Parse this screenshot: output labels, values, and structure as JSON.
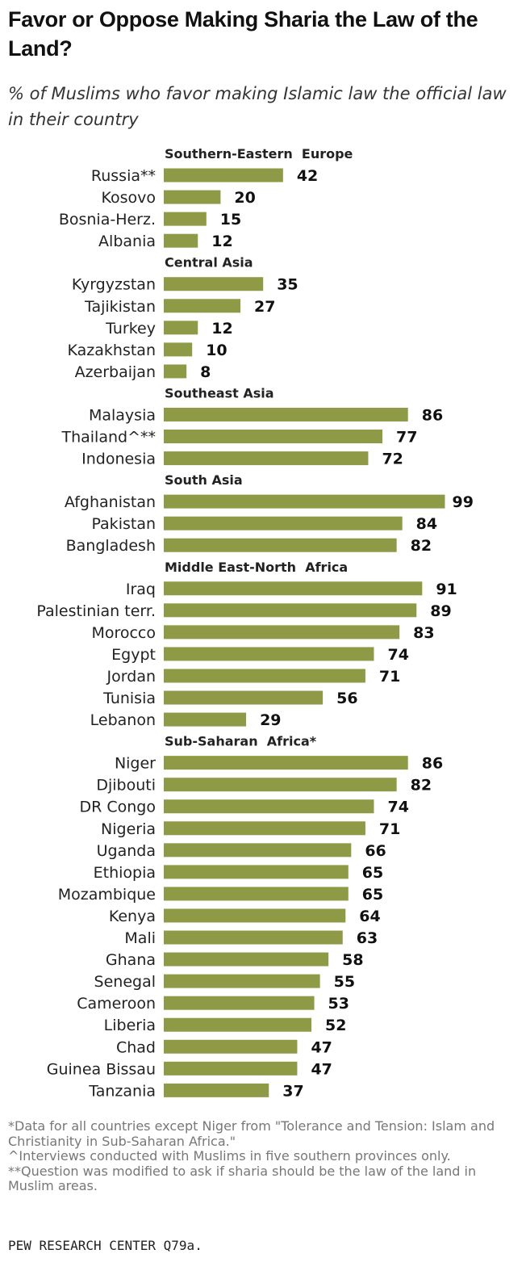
{
  "chart_data": {
    "type": "bar",
    "orientation": "horizontal",
    "title": "Favor or Oppose Making Sharia the Law of the Land?",
    "subtitle": "% of Muslims who favor making Islamic law the official law in their country",
    "bar_color": "#8e9a46",
    "xlim": [
      0,
      100
    ],
    "groups": [
      {
        "name": "Southern-Eastern  Europe",
        "categories": [
          "Russia**",
          "Kosovo",
          "Bosnia-Herz.",
          "Albania"
        ],
        "values": [
          42,
          20,
          15,
          12
        ]
      },
      {
        "name": "Central Asia",
        "categories": [
          "Kyrgyzstan",
          "Tajikistan",
          "Turkey",
          "Kazakhstan",
          "Azerbaijan"
        ],
        "values": [
          35,
          27,
          12,
          10,
          8
        ]
      },
      {
        "name": "Southeast Asia",
        "categories": [
          "Malaysia",
          "Thailand^**",
          "Indonesia"
        ],
        "values": [
          86,
          77,
          72
        ]
      },
      {
        "name": "South Asia",
        "categories": [
          "Afghanistan",
          "Pakistan",
          "Bangladesh"
        ],
        "values": [
          99,
          84,
          82
        ]
      },
      {
        "name": "Middle East-North  Africa",
        "categories": [
          "Iraq",
          "Palestinian terr.",
          "Morocco",
          "Egypt",
          "Jordan",
          "Tunisia",
          "Lebanon"
        ],
        "values": [
          91,
          89,
          83,
          74,
          71,
          56,
          29
        ]
      },
      {
        "name": "Sub-Saharan  Africa*",
        "categories": [
          "Niger",
          "Djibouti",
          "DR Congo",
          "Nigeria",
          "Uganda",
          "Ethiopia",
          "Mozambique",
          "Kenya",
          "Mali",
          "Ghana",
          "Senegal",
          "Cameroon",
          "Liberia",
          "Chad",
          "Guinea Bissau",
          "Tanzania"
        ],
        "values": [
          86,
          82,
          74,
          71,
          66,
          65,
          65,
          64,
          63,
          58,
          55,
          53,
          52,
          47,
          47,
          37
        ]
      }
    ]
  },
  "notes": [
    "*Data for all countries except Niger from \"Tolerance and Tension: Islam and Christianity in Sub-Saharan Africa.\"",
    "^Interviews conducted with Muslims in five  southern provinces only.",
    "**Question was modified to ask if sharia should be the law of the land in Muslim areas."
  ],
  "source": "PEW RESEARCH  CENTER Q79a."
}
